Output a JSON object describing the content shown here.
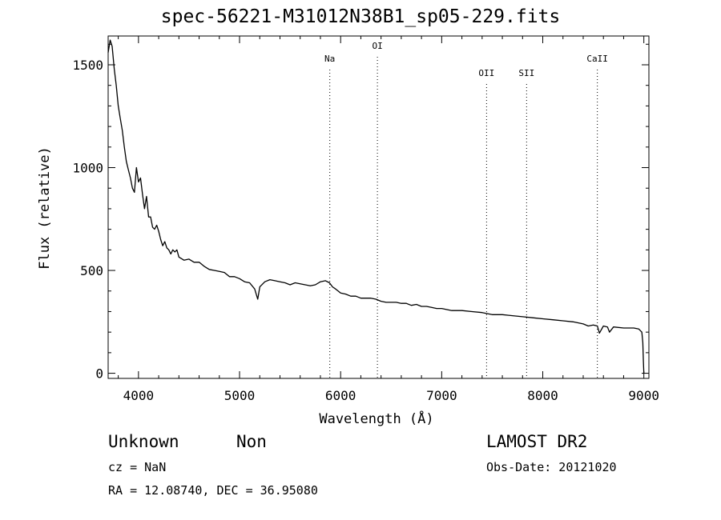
{
  "title": "spec-56221-M31012N38B1_sp05-229.fits",
  "info": {
    "class": "Unknown",
    "subclass": "Non",
    "survey": "LAMOST DR2",
    "cz": "cz = NaN",
    "obs_date": "Obs-Date: 20121020",
    "radec": "RA =   12.08740, DEC =   36.95080"
  },
  "chart_data": {
    "type": "line",
    "xlabel": "Wavelength (Å)",
    "ylabel": "Flux (relative)",
    "xlim": [
      3700,
      9050
    ],
    "ylim": [
      -25,
      1640
    ],
    "xticks": [
      4000,
      5000,
      6000,
      7000,
      8000,
      9000
    ],
    "yticks": [
      0,
      500,
      1000,
      1500
    ],
    "lines": [
      {
        "name": "Na",
        "x": 5893
      },
      {
        "name": "OI",
        "x": 6364
      },
      {
        "name": "OII",
        "x": 7444
      },
      {
        "name": "SII",
        "x": 7840
      },
      {
        "name": "CaII",
        "x": 8540
      }
    ],
    "series": [
      {
        "x": [
          3700,
          3720,
          3740,
          3760,
          3780,
          3800,
          3820,
          3840,
          3860,
          3880,
          3900,
          3920,
          3940,
          3960,
          3980,
          4000,
          4020,
          4040,
          4060,
          4080,
          4100,
          4120,
          4140,
          4160,
          4180,
          4200,
          4220,
          4240,
          4260,
          4280,
          4300,
          4320,
          4340,
          4360,
          4380,
          4400,
          4450,
          4500,
          4550,
          4600,
          4650,
          4700,
          4750,
          4800,
          4850,
          4900,
          4950,
          5000,
          5050,
          5100,
          5150,
          5180,
          5200,
          5250,
          5300,
          5350,
          5400,
          5450,
          5500,
          5550,
          5600,
          5650,
          5700,
          5750,
          5800,
          5850,
          5890,
          5920,
          5950,
          6000,
          6050,
          6100,
          6150,
          6200,
          6250,
          6300,
          6350,
          6400,
          6450,
          6500,
          6550,
          6600,
          6650,
          6700,
          6750,
          6800,
          6850,
          6900,
          6950,
          7000,
          7100,
          7200,
          7300,
          7400,
          7500,
          7600,
          7700,
          7800,
          7900,
          8000,
          8100,
          8200,
          8300,
          8400,
          8450,
          8500,
          8540,
          8560,
          8600,
          8640,
          8660,
          8700,
          8800,
          8900,
          8950,
          8980,
          8990,
          8995,
          9000
        ],
        "y": [
          1560,
          1620,
          1590,
          1480,
          1400,
          1300,
          1240,
          1180,
          1100,
          1030,
          990,
          950,
          900,
          880,
          1000,
          930,
          950,
          870,
          800,
          860,
          760,
          760,
          710,
          700,
          720,
          690,
          650,
          620,
          640,
          610,
          600,
          580,
          600,
          590,
          600,
          565,
          550,
          555,
          540,
          540,
          520,
          505,
          500,
          495,
          490,
          470,
          470,
          460,
          445,
          440,
          410,
          360,
          420,
          445,
          455,
          450,
          445,
          440,
          430,
          440,
          435,
          430,
          425,
          430,
          445,
          450,
          440,
          420,
          410,
          390,
          385,
          375,
          375,
          365,
          365,
          365,
          360,
          350,
          345,
          345,
          345,
          340,
          340,
          330,
          335,
          325,
          325,
          320,
          315,
          315,
          305,
          305,
          300,
          295,
          285,
          285,
          280,
          275,
          270,
          265,
          260,
          255,
          250,
          240,
          230,
          235,
          230,
          195,
          230,
          225,
          200,
          225,
          220,
          220,
          215,
          200,
          150,
          60,
          0
        ]
      }
    ]
  }
}
